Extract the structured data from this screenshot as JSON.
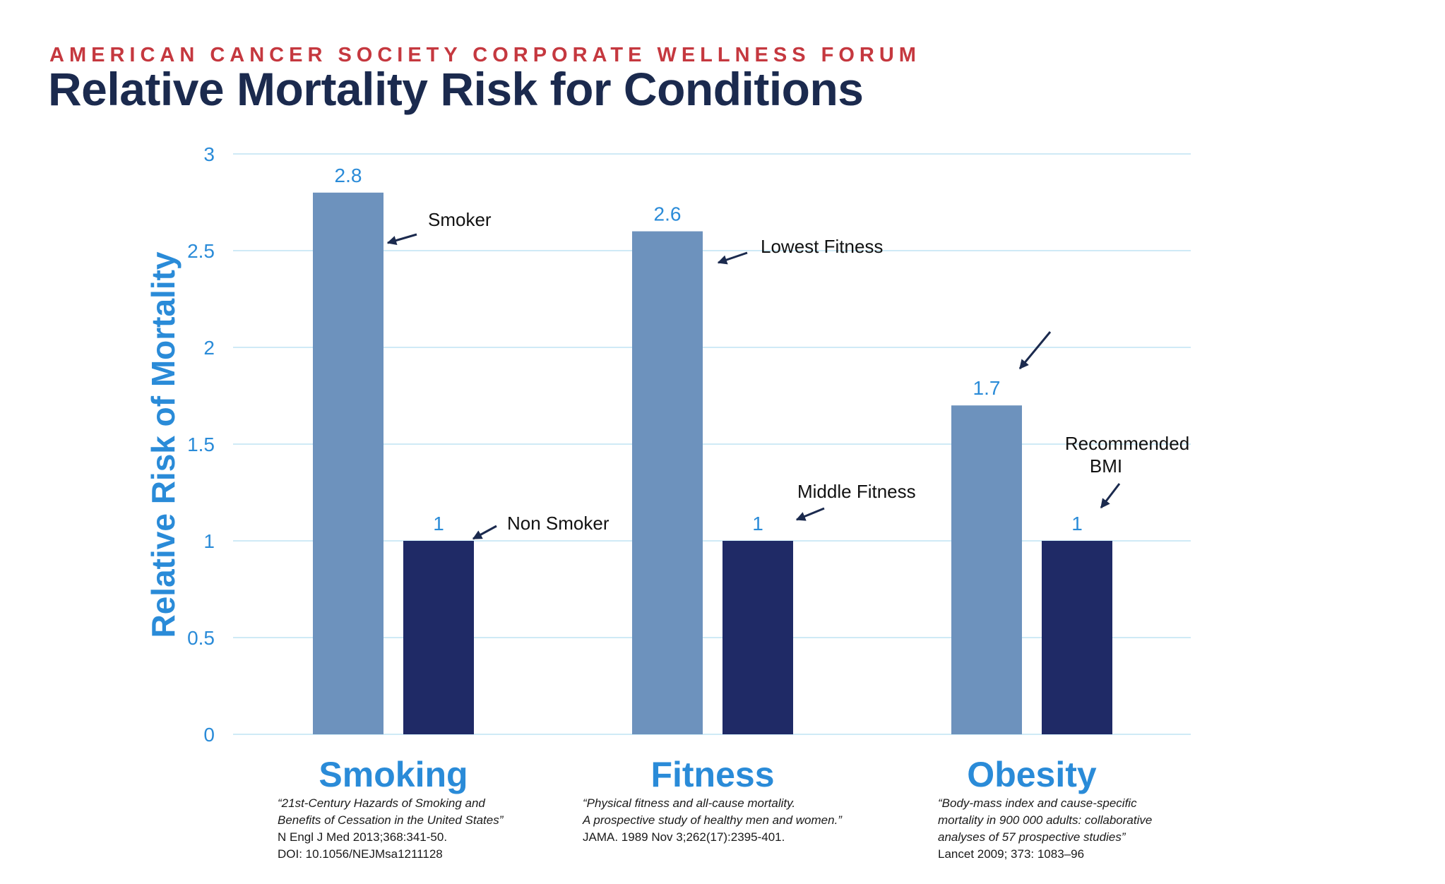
{
  "header": {
    "forum": "AMERICAN CANCER SOCIETY CORPORATE WELLNESS FORUM",
    "title": "Relative Mortality Risk for Conditions"
  },
  "colors": {
    "light_bar": "#6d92bd",
    "dark_bar": "#1f2a66",
    "axis_text": "#2a8bd8",
    "grid": "#bfe3f3",
    "annotation_arrow": "#1b2a4e"
  },
  "chart_data": {
    "type": "bar",
    "title": "",
    "xlabel": "",
    "ylabel": "Relative Risk of Mortality",
    "ylim": [
      0,
      3
    ],
    "yticks": [
      "0",
      "0.5",
      "1",
      "1.5",
      "2",
      "2.5",
      "3"
    ],
    "grid": true,
    "categories": [
      "Smoking",
      "Fitness",
      "Obesity"
    ],
    "series": [
      {
        "values": [
          2.8,
          2.6,
          1.7
        ]
      },
      {
        "values": [
          1,
          1,
          1
        ]
      }
    ],
    "data_labels": [
      [
        "2.8",
        "2.6",
        "1.7"
      ],
      [
        "1",
        "1",
        "1"
      ]
    ],
    "annotations": [
      {
        "text": "Smoker"
      },
      {
        "text": "Non Smoker"
      },
      {
        "text": "Lowest Fitness"
      },
      {
        "text": "Middle Fitness"
      },
      {
        "text": ""
      },
      {
        "text": "Recommended BMI"
      }
    ]
  },
  "references": [
    {
      "lines_italic": [
        "“21st-Century Hazards of Smoking and",
        "Benefits of Cessation in the United States”"
      ],
      "lines": [
        "N Engl J Med 2013;368:341-50.",
        "DOI: 10.1056/NEJMsa1211128"
      ]
    },
    {
      "lines_italic": [
        "“Physical fitness and all-cause mortality.",
        "A prospective study of healthy men and women.”"
      ],
      "lines": [
        "JAMA. 1989 Nov 3;262(17):2395-401."
      ]
    },
    {
      "lines_italic": [
        "“Body-mass index and cause-specific",
        "mortality in 900 000 adults: collaborative",
        "analyses of 57 prospective studies”"
      ],
      "lines": [
        "Lancet 2009; 373: 1083–96"
      ]
    }
  ]
}
